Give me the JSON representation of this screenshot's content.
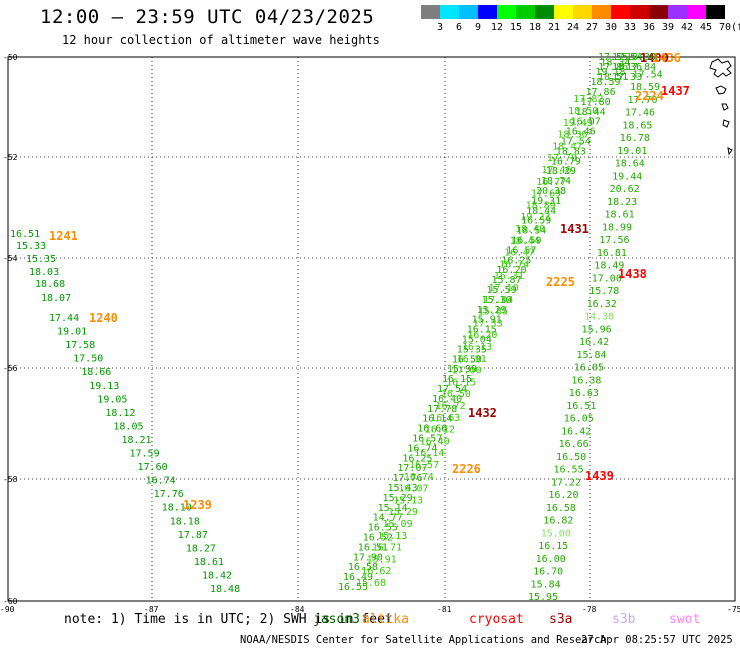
{
  "header": {
    "title": "12:00 – 23:59 UTC 04/23/2025",
    "subtitle": "12 hour collection of altimeter wave heights"
  },
  "scale": {
    "labels": [
      "3",
      "6",
      "9",
      "12",
      "15",
      "18",
      "21",
      "24",
      "27",
      "30",
      "33",
      "36",
      "39",
      "42",
      "45",
      "70",
      "(ft)"
    ],
    "colors": [
      "#7f7f7f",
      "#00e5ff",
      "#00bfff",
      "#0000ff",
      "#00ff00",
      "#00cd00",
      "#008b00",
      "#ffff00",
      "#ffd700",
      "#ff8c00",
      "#ff0000",
      "#cd0000",
      "#8b0000",
      "#9b30ff",
      "#ff00ff",
      "#000000"
    ]
  },
  "axes": {
    "lat_labels": [
      "-50",
      "-52",
      "-54",
      "-56",
      "-58",
      "-60"
    ],
    "lon_labels": [
      "-90",
      "-87",
      "-84",
      "-81",
      "-78",
      "-75"
    ]
  },
  "swaths": {
    "jason3_1240": {
      "time": "1240",
      "values": [
        "17.44",
        "19.01",
        "17.58",
        "17.50",
        "18.66",
        "19.13",
        "19.05",
        "18.12",
        "18.05",
        "18.21",
        "17.59",
        "17.60",
        "16.74",
        "17.76",
        "18.10",
        "18.18",
        "17.87",
        "18.27",
        "18.61",
        "18.42",
        "18.48"
      ]
    },
    "jason3_1240_top": {
      "values": [
        "18.07",
        "18.68",
        "18.03",
        "15.35",
        "15.33",
        "16.51"
      ]
    },
    "altika_1241": {
      "time": "1241"
    },
    "altika_1240": {
      "time": "1240"
    },
    "altika_1239": {
      "time": "1239"
    },
    "green_track_a": {
      "values": [
        "16.55",
        "16.49",
        "16.58",
        "17.90",
        "16.51",
        "16.52",
        "16.55",
        "14.77",
        "15.14",
        "15.29",
        "15.43",
        "17.76",
        "17.07",
        "16.25",
        "16.74",
        "16.57",
        "16.66",
        "16.14",
        "17.78",
        "16.40",
        "17.54",
        "16.15",
        "15.99",
        "16.50",
        "15.35",
        "15.04",
        "16.15",
        "15.91",
        "15.29",
        "15.30",
        "15.59",
        "15.87",
        "16.20",
        "16.25",
        "16.57",
        "16.59",
        "18.54",
        "16.59",
        "18.44",
        "19.31",
        "20.38",
        "18.74",
        "18.29",
        "16.79",
        "18.83",
        "17.54",
        "16.46",
        "16.07",
        "18.44",
        "17.80",
        "17.86",
        "18.59",
        "19.18",
        "18.34"
      ]
    },
    "green_track_b": {
      "values": [
        "15.68",
        "16.62",
        "15.91",
        "16.71",
        "15.13",
        "15.09",
        "15.29",
        "15.13",
        "16.07",
        "16.74",
        "16.57",
        "16.14",
        "16.40",
        "16.12",
        "16.63",
        "16.72",
        "16.50",
        "16.15",
        "17.00",
        "16.91",
        "16.13",
        "16.20",
        "17.33",
        "15.85",
        "17.04",
        "17.10",
        "16.31",
        "16.74",
        "16.47",
        "18.44",
        "18.40",
        "19.23",
        "18.89",
        "17.69",
        "16.77",
        "17.46",
        "17.70",
        "18.47",
        "18.36",
        "19.49",
        "18.50",
        "17.82"
      ]
    },
    "cryosat_1439": {
      "time": "1439",
      "values": [
        "15.95",
        "15.84",
        "16.70",
        "16.00",
        "16.15",
        "15.00",
        "16.82",
        "16.58",
        "16.20",
        "17.22",
        "16.55",
        "16.50",
        "16.66",
        "16.42",
        "16.05",
        "16.51",
        "16.63",
        "16.38",
        "16.05",
        "15.84",
        "16.42",
        "15.96",
        "14.38",
        "16.32",
        "15.78",
        "17.00",
        "18.49",
        "16.81",
        "17.56",
        "18.99",
        "18.61",
        "18.23",
        "20.62",
        "19.44",
        "18.64",
        "19.01",
        "16.78",
        "18.65",
        "17.46",
        "17.70",
        "18.59",
        "17.54"
      ]
    },
    "cryosat_1438": {
      "time": "1438"
    },
    "cryosat_1437": {
      "time": "1437"
    },
    "s3a_1432": {
      "time": "1432"
    },
    "s3a_1431": {
      "time": "1431"
    },
    "altika_2226": {
      "time": "2226"
    },
    "altika_2225": {
      "time": "2225"
    },
    "altika_2224": {
      "time": "2224"
    },
    "top_cluster": {
      "time": "1400",
      "time2": "1436",
      "values": [
        "17.55",
        "17.54",
        "18.30",
        "17.86",
        "18.36",
        "17.84",
        "18.51",
        "17.33"
      ]
    }
  },
  "note": {
    "prefix": "note: 1) Time is in UTC; 2) SWH is in feet",
    "jason3": "jason3",
    "altika": "altika",
    "cryosat": "cryosat",
    "s3a": "s3a",
    "s3b": "s3b",
    "swot": "swot"
  },
  "footer": {
    "credit": "NOAA/NESDIS Center for Satellite Applications and Research",
    "timestamp": "27 Apr 08:25:57 UTC 2025"
  }
}
